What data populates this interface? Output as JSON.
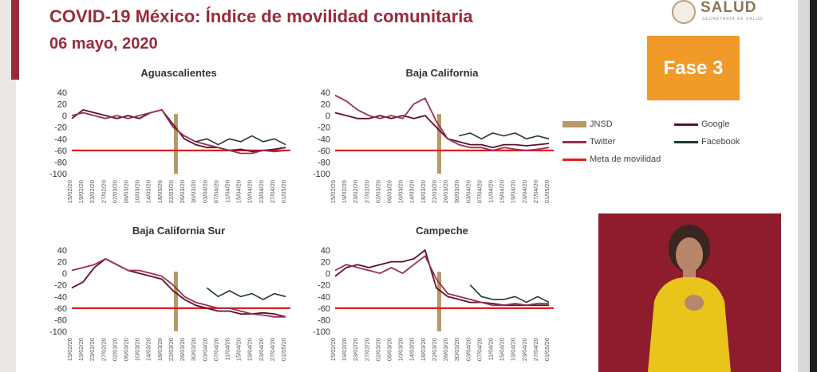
{
  "header": {
    "title": "COVID-19 México: Índice de movilidad comunitaria",
    "date": "06 mayo, 2020"
  },
  "logo": {
    "text": "SALUD",
    "subtext": "SECRETARÍA DE SALUD"
  },
  "phase_label": "Fase 3",
  "colors": {
    "brand": "#9a2a3c",
    "phase": "#f09a2a",
    "google": "#5c1226",
    "twitter": "#9b2e55",
    "facebook": "#1f3a2c",
    "meta": "#e02020",
    "jnsd": "#b79868"
  },
  "legend": [
    {
      "label": "JNSD",
      "key": "jnsd"
    },
    {
      "label": "Google",
      "key": "google"
    },
    {
      "label": "Twitter",
      "key": "twitter"
    },
    {
      "label": "Facebook",
      "key": "facebook"
    },
    {
      "label": "Meta de movilidad",
      "key": "meta"
    }
  ],
  "chart_data": [
    {
      "type": "line",
      "title": "Aguascalientes",
      "x": [
        "15/02/20",
        "19/02/20",
        "23/02/20",
        "27/02/20",
        "02/03/20",
        "06/03/20",
        "10/03/20",
        "14/03/20",
        "18/03/20",
        "22/03/20",
        "26/03/20",
        "30/03/20",
        "03/04/20",
        "07/04/20",
        "11/04/20",
        "15/04/20",
        "19/04/20",
        "23/04/20",
        "27/04/20",
        "01/05/20"
      ],
      "y_ticks": [
        "40",
        "20",
        "0",
        "-20",
        "-40",
        "-60",
        "-80",
        "-100"
      ],
      "ylim": [
        -100,
        40
      ],
      "jnsd_date": "23/03/20",
      "meta": -60,
      "series": [
        {
          "name": "Google",
          "values": [
            -5,
            10,
            5,
            0,
            -5,
            0,
            -5,
            5,
            10,
            -15,
            -40,
            -50,
            -55,
            -55,
            -60,
            -58,
            -62,
            -60,
            -58,
            -55
          ]
        },
        {
          "name": "Twitter",
          "values": [
            0,
            5,
            0,
            -5,
            0,
            -5,
            0,
            5,
            10,
            -20,
            -35,
            -45,
            -50,
            -55,
            -60,
            -65,
            -65,
            -60,
            -62,
            -60
          ]
        },
        {
          "name": "Facebook",
          "values": [
            null,
            null,
            null,
            null,
            null,
            null,
            null,
            null,
            null,
            null,
            null,
            -45,
            -40,
            -50,
            -40,
            -45,
            -35,
            -45,
            -40,
            -50
          ]
        }
      ]
    },
    {
      "type": "line",
      "title": "Baja California",
      "x": [
        "15/02/20",
        "19/02/20",
        "23/02/20",
        "27/02/20",
        "02/03/20",
        "06/03/20",
        "10/03/20",
        "14/03/20",
        "18/03/20",
        "22/03/20",
        "26/03/20",
        "30/03/20",
        "03/04/20",
        "07/04/20",
        "11/04/20",
        "15/04/20",
        "19/04/20",
        "23/04/20",
        "27/04/20",
        "01/05/20"
      ],
      "y_ticks": [
        "40",
        "20",
        "0",
        "-20",
        "-40",
        "-60",
        "-80",
        "-100"
      ],
      "ylim": [
        -100,
        40
      ],
      "jnsd_date": "23/03/20",
      "meta": -60,
      "series": [
        {
          "name": "Google",
          "values": [
            5,
            0,
            -5,
            -5,
            0,
            -5,
            0,
            -5,
            0,
            -20,
            -40,
            -45,
            -50,
            -50,
            -55,
            -50,
            -50,
            -52,
            -50,
            -48
          ]
        },
        {
          "name": "Twitter",
          "values": [
            35,
            25,
            10,
            0,
            -5,
            0,
            -5,
            20,
            30,
            -10,
            -40,
            -50,
            -55,
            -55,
            -60,
            -55,
            -58,
            -60,
            -58,
            -55
          ]
        },
        {
          "name": "Facebook",
          "values": [
            null,
            null,
            null,
            null,
            null,
            null,
            null,
            null,
            null,
            null,
            null,
            -35,
            -30,
            -40,
            -30,
            -35,
            -30,
            -40,
            -35,
            -40
          ]
        }
      ]
    },
    {
      "type": "line",
      "title": "Baja California Sur",
      "x": [
        "15/02/20",
        "19/02/20",
        "23/02/20",
        "27/02/20",
        "02/03/20",
        "06/03/20",
        "10/03/20",
        "14/03/20",
        "18/03/20",
        "22/03/20",
        "26/03/20",
        "30/03/20",
        "03/04/20",
        "07/04/20",
        "11/04/20",
        "15/04/20",
        "19/04/20",
        "23/04/20",
        "27/04/20",
        "01/05/20"
      ],
      "y_ticks": [
        "40",
        "20",
        "0",
        "-20",
        "-40",
        "-60",
        "-80",
        "-100"
      ],
      "ylim": [
        -100,
        40
      ],
      "jnsd_date": "23/03/20",
      "meta": -60,
      "series": [
        {
          "name": "Google",
          "values": [
            -25,
            -15,
            10,
            25,
            15,
            5,
            0,
            -5,
            -10,
            -30,
            -45,
            -55,
            -60,
            -65,
            -65,
            -70,
            -70,
            -68,
            -70,
            -75
          ]
        },
        {
          "name": "Twitter",
          "values": [
            5,
            10,
            15,
            25,
            15,
            5,
            5,
            0,
            -5,
            -20,
            -40,
            -50,
            -55,
            -60,
            -60,
            -65,
            -70,
            -72,
            -75,
            -75
          ]
        },
        {
          "name": "Facebook",
          "values": [
            null,
            null,
            null,
            null,
            null,
            null,
            null,
            null,
            null,
            null,
            null,
            null,
            -25,
            -40,
            -30,
            -40,
            -35,
            -45,
            -35,
            -40
          ]
        }
      ]
    },
    {
      "type": "line",
      "title": "Campeche",
      "x": [
        "15/02/20",
        "19/02/20",
        "23/02/20",
        "27/02/20",
        "02/03/20",
        "06/03/20",
        "10/03/20",
        "14/03/20",
        "18/03/20",
        "22/03/20",
        "26/03/20",
        "30/03/20",
        "03/04/20",
        "07/04/20",
        "11/04/20",
        "15/04/20",
        "19/04/20",
        "23/04/20",
        "27/04/20",
        "01/05/20"
      ],
      "y_ticks": [
        "40",
        "20",
        "0",
        "-20",
        "-40",
        "-60",
        "-80",
        "-100"
      ],
      "ylim": [
        -100,
        40
      ],
      "jnsd_date": "23/03/20",
      "meta": -60,
      "series": [
        {
          "name": "Google",
          "values": [
            -5,
            10,
            15,
            10,
            15,
            20,
            20,
            25,
            40,
            -25,
            -40,
            -45,
            -50,
            -50,
            -52,
            -55,
            -55,
            -55,
            -55,
            -55
          ]
        },
        {
          "name": "Twitter",
          "values": [
            5,
            15,
            10,
            5,
            0,
            10,
            0,
            15,
            30,
            -10,
            -35,
            -40,
            -45,
            -50,
            -55,
            -55,
            -52,
            -55,
            -52,
            -52
          ]
        },
        {
          "name": "Facebook",
          "values": [
            null,
            null,
            null,
            null,
            null,
            null,
            null,
            null,
            null,
            null,
            null,
            null,
            -20,
            -40,
            -45,
            -45,
            -40,
            -50,
            -40,
            -50
          ]
        }
      ]
    }
  ]
}
